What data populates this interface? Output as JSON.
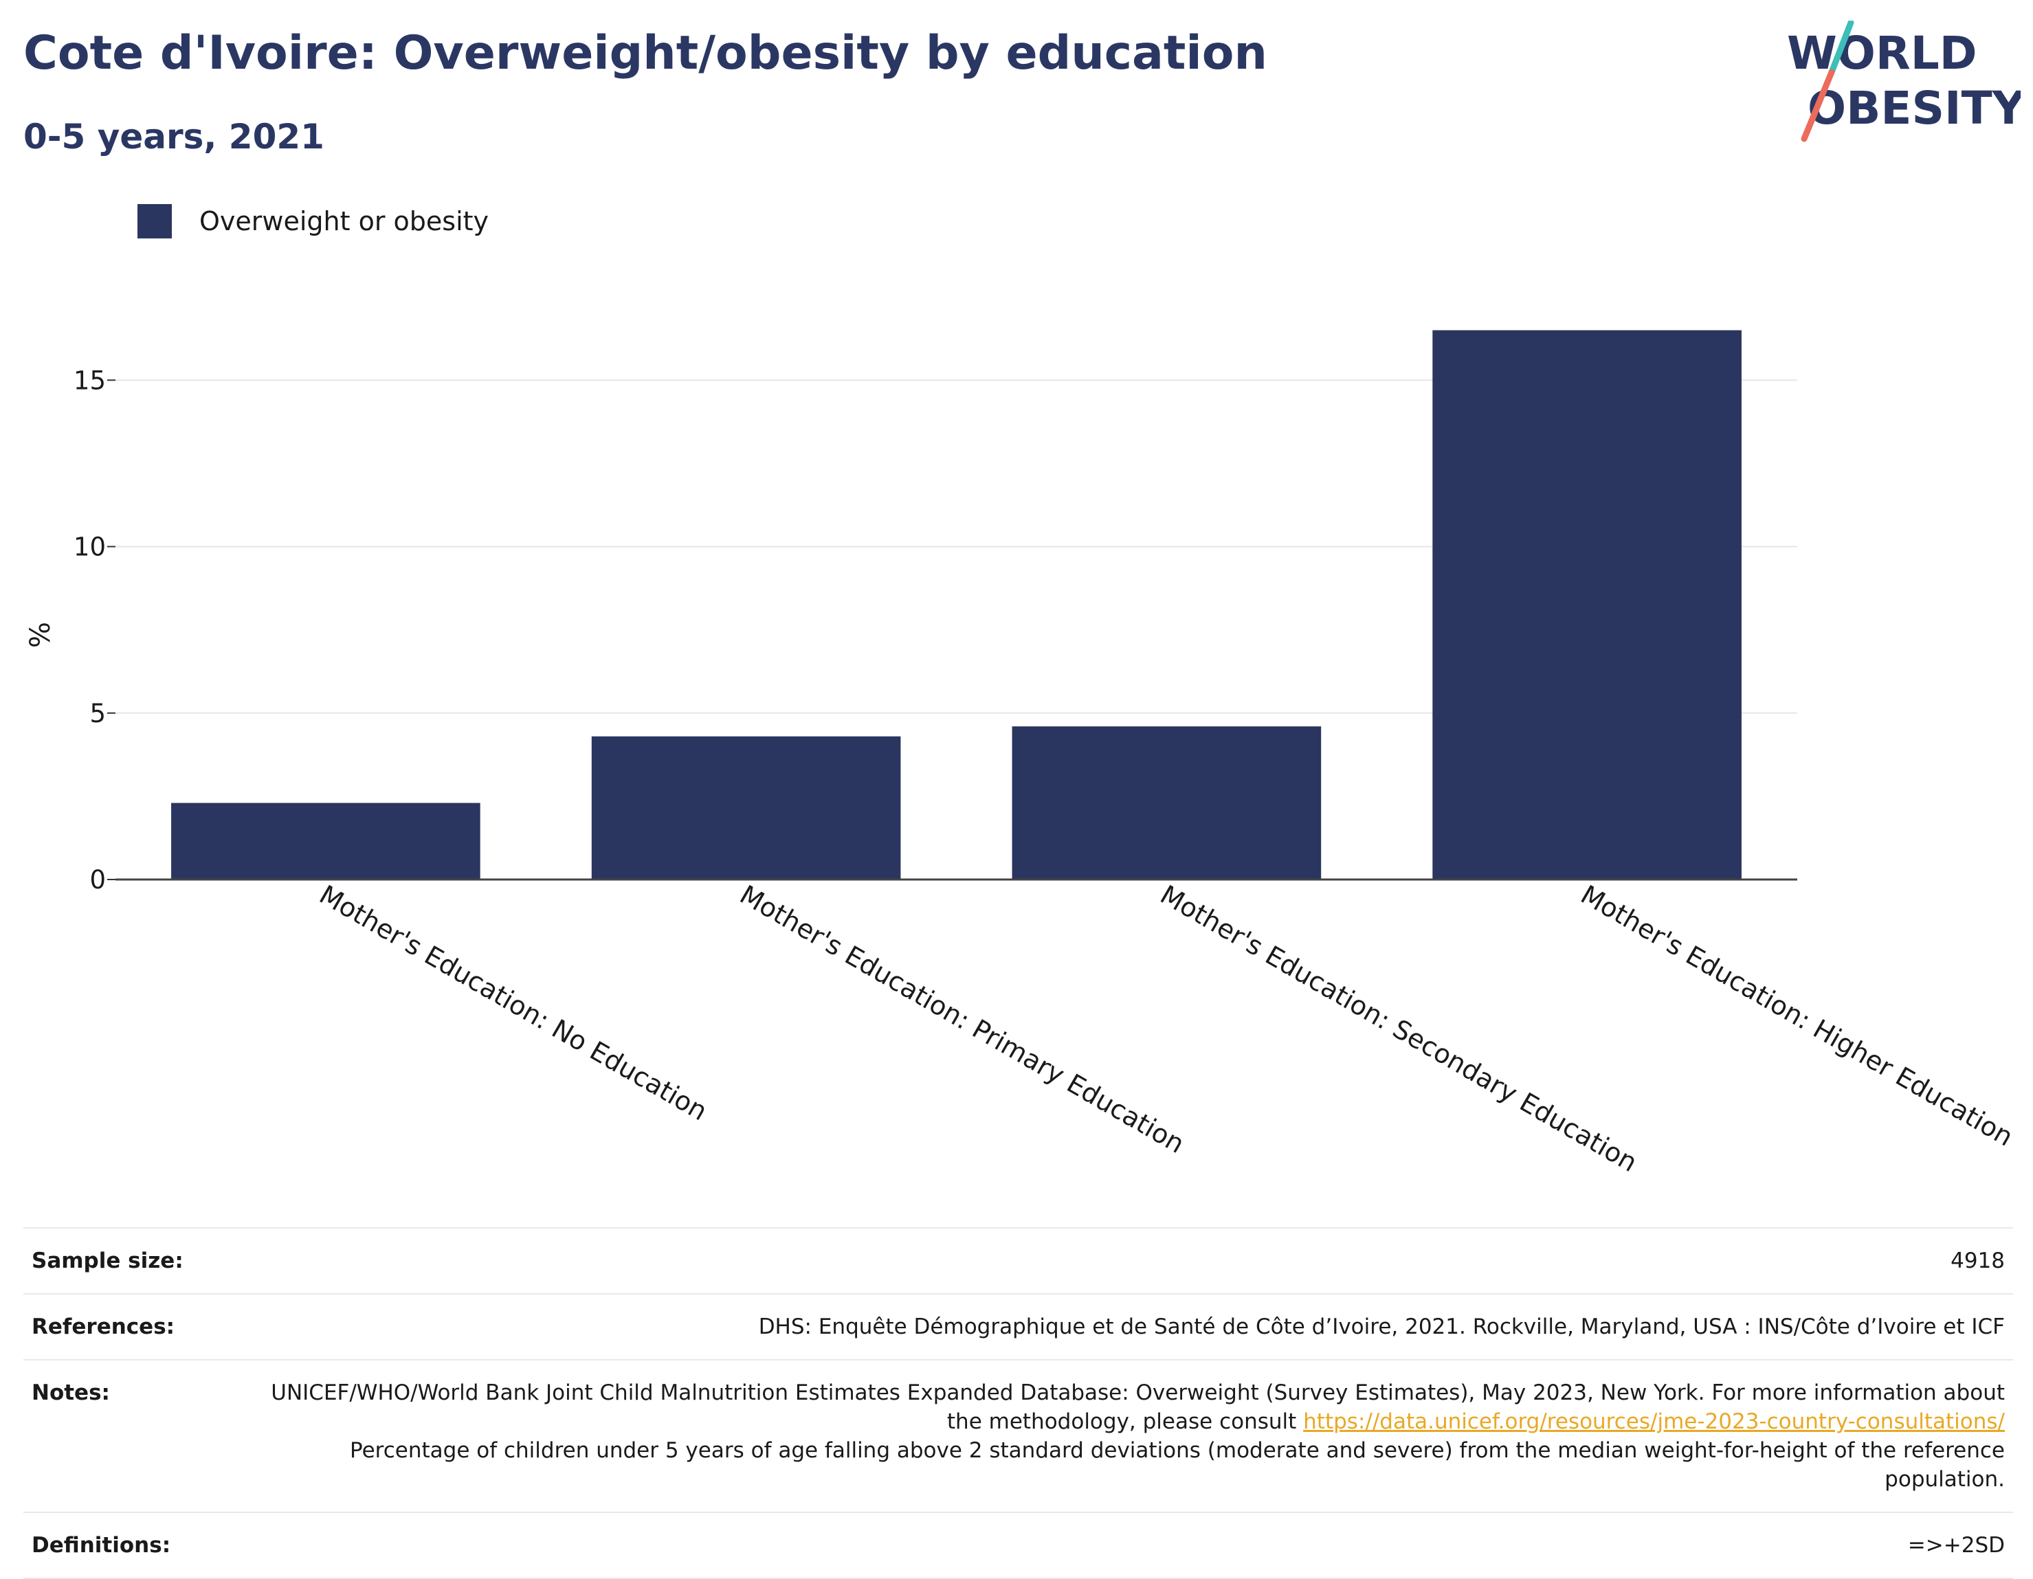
{
  "header": {
    "title": "Cote d'Ivoire: Overweight/obesity by education",
    "subtitle": "0-5 years, 2021"
  },
  "logo": {
    "line1": "WORLD",
    "line2": "OBESITY"
  },
  "colors": {
    "bar": "#2a365f",
    "title": "#2b3763",
    "link": "#e9a825",
    "logo_teal": "#3bbfb8",
    "logo_coral": "#ec6b5b"
  },
  "chart_data": {
    "type": "bar",
    "categories": [
      "Mother's Education: No Education",
      "Mother's Education: Primary Education",
      "Mother's Education: Secondary Education",
      "Mother's Education: Higher Education"
    ],
    "series": [
      {
        "name": "Overweight or obesity",
        "values": [
          2.3,
          4.3,
          4.6,
          16.5
        ]
      }
    ],
    "ylabel": "%",
    "xlabel": "",
    "yticks": [
      0,
      5,
      10,
      15
    ],
    "ylim": [
      0,
      18
    ],
    "grid": true,
    "legend": "top-left"
  },
  "info": {
    "sample_size_label": "Sample size:",
    "sample_size_value": "4918",
    "references_label": "References:",
    "references_value": "DHS: Enquête Démographique et de Santé de Côte d’Ivoire, 2021. Rockville, Maryland, USA : INS/Côte d’Ivoire et ICF",
    "notes_label": "Notes:",
    "notes_text1": "UNICEF/WHO/World Bank Joint Child Malnutrition Estimates Expanded Database: Overweight (Survey Estimates), May 2023, New York. For more information about the methodology, please consult",
    "notes_link": "https://data.unicef.org/resources/jme-2023-country-consultations/",
    "notes_text2": "Percentage of children under 5 years of age falling above 2 standard deviations (moderate and severe) from the median weight-for-height of the reference population.",
    "definitions_label": "Definitions:",
    "definitions_value": "=>+2SD"
  }
}
